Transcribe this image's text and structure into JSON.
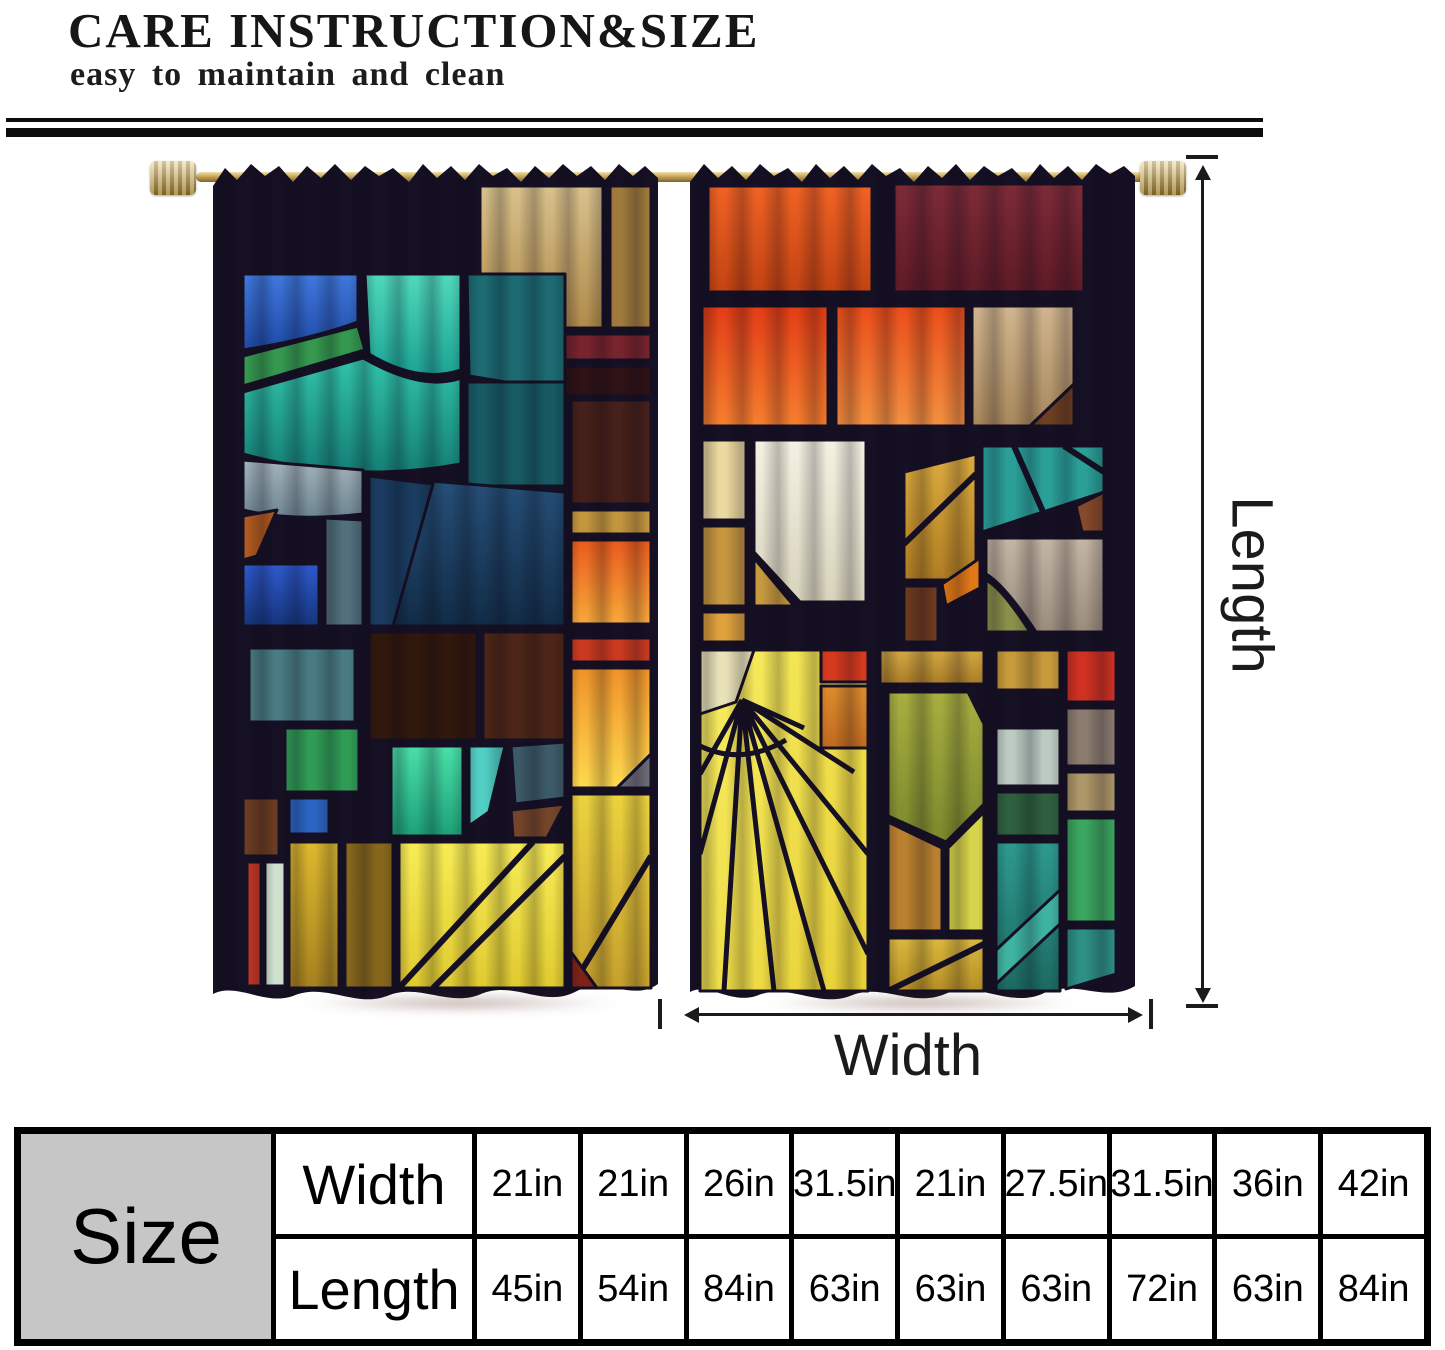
{
  "header": {
    "title": "CARE INSTRUCTION&SIZE",
    "subtitle": "easy to maintain and clean"
  },
  "annotations": {
    "length_label": "Length",
    "width_label": "Width"
  },
  "curtain": {
    "description": "Two stained-glass printed curtain panels hanging on a brass rod",
    "panel_count": 2
  },
  "size_table": {
    "corner_label": "Size",
    "rows": [
      {
        "label": "Width",
        "values": [
          "21in",
          "21in",
          "26in",
          "31.5in",
          "21in",
          "27.5in",
          "31.5in",
          "36in",
          "42in"
        ]
      },
      {
        "label": "Length",
        "values": [
          "45in",
          "54in",
          "84in",
          "63in",
          "63in",
          "63in",
          "72in",
          "63in",
          "84in"
        ]
      }
    ]
  },
  "palette": {
    "leading_dark": "#161024",
    "rod_brass": "#c7a75c",
    "teal": "#2cc0a6",
    "royal_blue": "#2e59cc",
    "emerald": "#3fcf9f",
    "yellow": "#f2e14a",
    "orange": "#ec5a1e",
    "red": "#d63a1e",
    "maroon": "#78242e",
    "tan": "#c9b489",
    "table_gray": "#c6c6c6",
    "text": "#111111"
  }
}
